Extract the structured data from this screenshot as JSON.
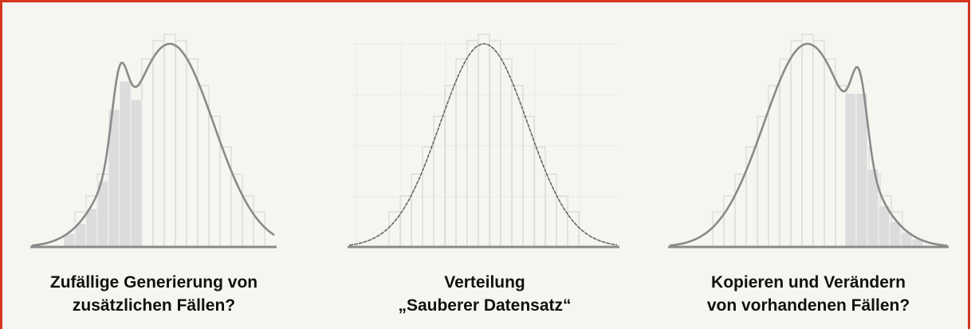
{
  "panels": [
    {
      "caption": [
        "Zufällige Generierung von",
        "zusätzlichen Fällen?"
      ]
    },
    {
      "caption": [
        "Verteilung",
        "„Sauberer Datensatz“"
      ]
    },
    {
      "caption": [
        "Kopieren und Verändern",
        "von vorhandenen Fällen?"
      ]
    }
  ]
}
